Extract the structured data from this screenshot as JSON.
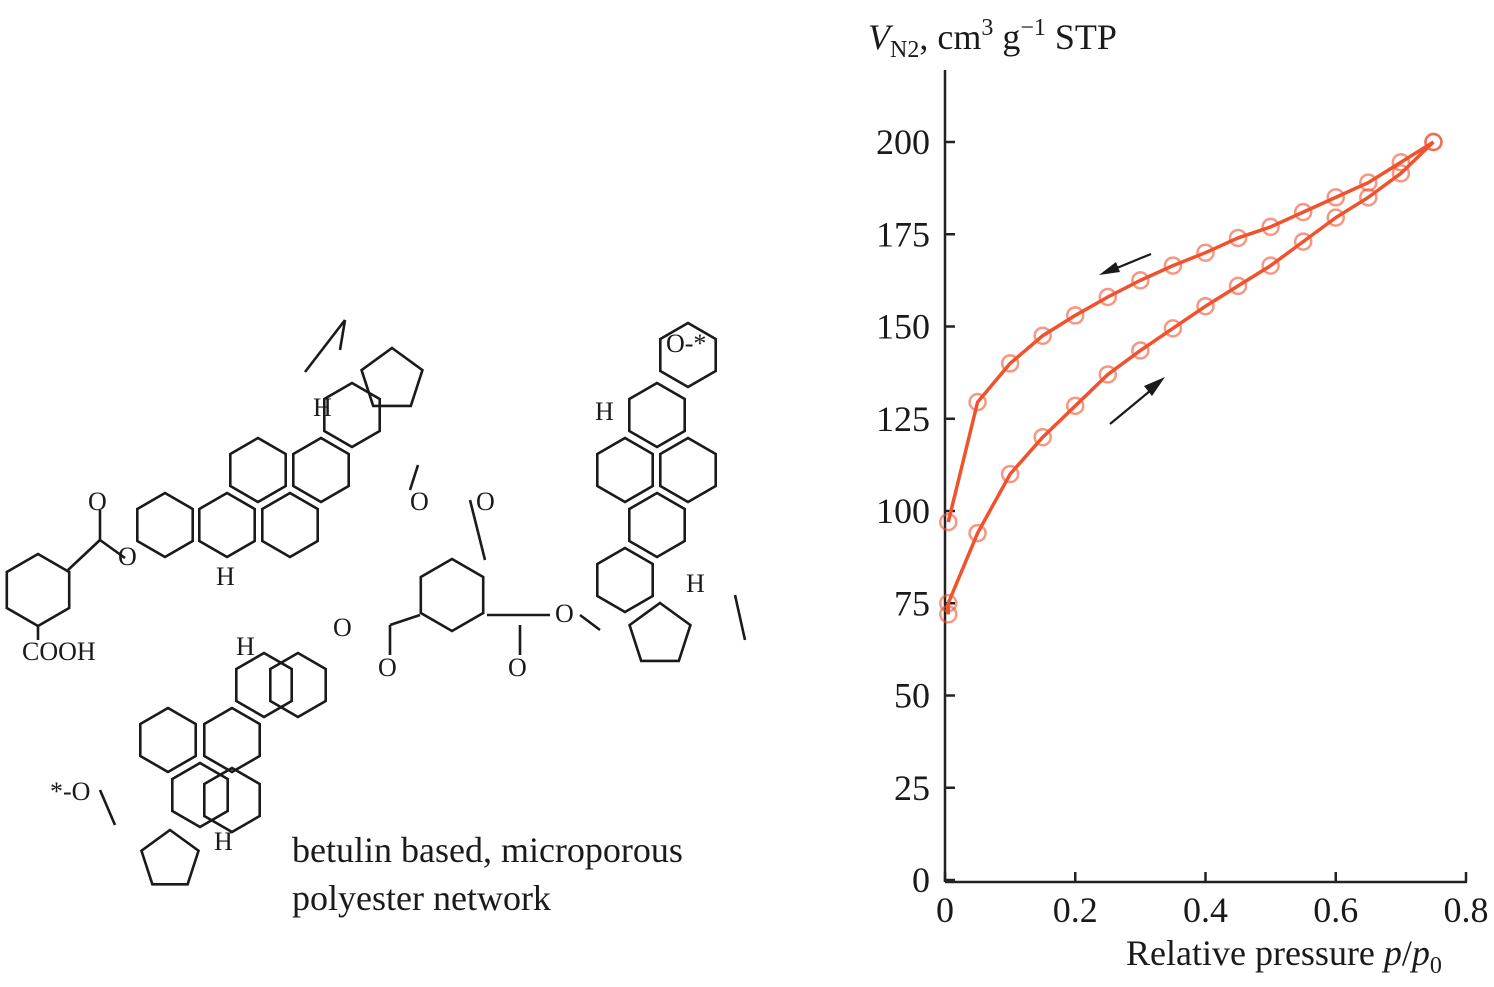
{
  "structure": {
    "atoms": {
      "cooh": "COOH",
      "o": "O",
      "h": "H",
      "star_o_left": "*-O",
      "o_star_right": "O-*"
    },
    "caption_line1": "betulin based, microporous",
    "caption_line2": "polyester network"
  },
  "chart_data": {
    "type": "line",
    "ylabel": "V_N2, cm3 g-1 STP",
    "ylabel_parts": {
      "v": "V",
      "sub": "N2",
      "rest": ", cm",
      "sup3": "3",
      "g": " g",
      "supm1": "−1",
      "stp": " STP"
    },
    "xlabel": "Relative pressure p/p0",
    "xlabel_parts": {
      "text": "Relative pressure ",
      "p": "p",
      "slash": "/",
      "p0": "p",
      "sub0": "0"
    },
    "xlim": [
      0,
      0.8
    ],
    "ylim": [
      0,
      200
    ],
    "xticks": [
      0,
      0.2,
      0.4,
      0.6,
      0.8
    ],
    "xtick_labels": [
      "0",
      "0.2",
      "0.4",
      "0.6",
      "0.8"
    ],
    "yticks": [
      0,
      25,
      50,
      75,
      100,
      125,
      150,
      175,
      200
    ],
    "ytick_labels": [
      "0",
      "25",
      "50",
      "75",
      "100",
      "125",
      "150",
      "175",
      "200"
    ],
    "grid": false,
    "color": "#f0522e",
    "marker": "open-circle",
    "series": [
      {
        "x": [
          0.005,
          0.005,
          0.05,
          0.1,
          0.15,
          0.2,
          0.25,
          0.3,
          0.35,
          0.4,
          0.45,
          0.5,
          0.55,
          0.6,
          0.65,
          0.7,
          0.75
        ],
        "y": [
          72,
          75,
          94,
          110,
          120,
          128.5,
          137,
          143.5,
          149.5,
          155.5,
          161,
          166.5,
          173,
          179.5,
          185,
          191.5,
          200
        ]
      },
      {
        "x": [
          0.75,
          0.7,
          0.65,
          0.6,
          0.55,
          0.5,
          0.45,
          0.4,
          0.35,
          0.3,
          0.25,
          0.2,
          0.15,
          0.1,
          0.05,
          0.005
        ],
        "y": [
          200,
          194.5,
          189,
          185,
          181,
          177,
          174,
          170,
          166.5,
          162.5,
          158,
          153,
          147.5,
          140,
          129.5,
          97
        ]
      }
    ],
    "annotations": [
      "arrow-up-right",
      "arrow-down-left"
    ]
  }
}
